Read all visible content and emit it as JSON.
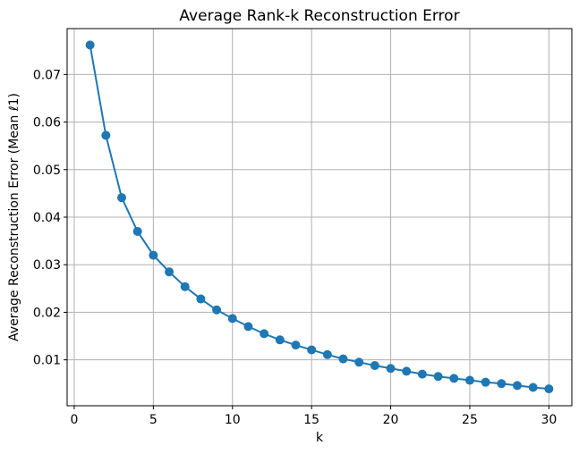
{
  "chart_data": {
    "type": "line",
    "title": "Average Rank-k Reconstruction Error",
    "xlabel": "k",
    "ylabel": "Average Reconstruction Error (Mean ℓ1)",
    "xlim": [
      -0.45,
      31.45
    ],
    "ylim": [
      0.00035,
      0.07965
    ],
    "xticks": [
      0,
      5,
      10,
      15,
      20,
      25,
      30
    ],
    "xtick_labels": [
      "0",
      "5",
      "10",
      "15",
      "20",
      "25",
      "30"
    ],
    "yticks": [
      0.01,
      0.02,
      0.03,
      0.04,
      0.05,
      0.06,
      0.07
    ],
    "ytick_labels": [
      "0.01",
      "0.02",
      "0.03",
      "0.04",
      "0.05",
      "0.06",
      "0.07"
    ],
    "grid": true,
    "legend": "none",
    "series": [
      {
        "color": "#1f77b4",
        "marker": "circle",
        "x": [
          1,
          2,
          3,
          4,
          5,
          6,
          7,
          8,
          9,
          10,
          11,
          12,
          13,
          14,
          15,
          16,
          17,
          18,
          19,
          20,
          21,
          22,
          23,
          24,
          25,
          26,
          27,
          28,
          29,
          30
        ],
        "y": [
          0.0762,
          0.0572,
          0.0441,
          0.037,
          0.032,
          0.0285,
          0.0254,
          0.0228,
          0.0205,
          0.0187,
          0.017,
          0.0155,
          0.0142,
          0.0131,
          0.0121,
          0.0111,
          0.0102,
          0.0095,
          0.0088,
          0.0082,
          0.0076,
          0.007,
          0.0065,
          0.0061,
          0.0057,
          0.0053,
          0.005,
          0.0046,
          0.0042,
          0.0039
        ]
      }
    ]
  }
}
